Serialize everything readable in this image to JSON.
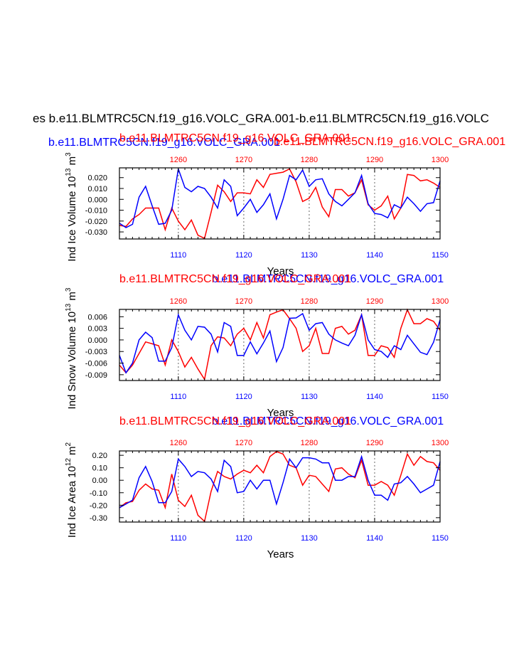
{
  "title": "es b.e11.BLMTRC5CN.f19_g16.VOLC_GRA.001-b.e11.BLMTRC5CN.f19_g16.VOLC",
  "colors": {
    "series_a": "#0000ff",
    "series_b": "#ff0000",
    "axis": "#000000",
    "gridline": "#808080"
  },
  "chart_data": [
    {
      "type": "line",
      "ylabel": "Ind Ice Volume 10",
      "ylabel_exp": "13",
      "ylabel_unit": " m",
      "ylabel_unit_exp": "3",
      "xlabel": "Years",
      "x_bottom": {
        "ticks": [
          1110,
          1120,
          1130,
          1140,
          1150
        ],
        "range": [
          1101,
          1150
        ]
      },
      "x_top": {
        "ticks": [
          1260,
          1270,
          1280,
          1290,
          1300
        ],
        "range": [
          1251,
          1300
        ]
      },
      "ylim": [
        -0.0365,
        0.029
      ],
      "yticks": [
        "0.020",
        "0.010",
        "0.000",
        "-0.010",
        "-0.020",
        "-0.030"
      ],
      "ytick_values": [
        0.02,
        0.01,
        0.0,
        -0.01,
        -0.02,
        -0.03
      ],
      "series": [
        {
          "name": "b.e11.BLMTRC5CN.f19_g16.VOLC_GRA.001",
          "axis": "bottom",
          "values": [
            -0.022,
            -0.026,
            -0.023,
            0.002,
            0.012,
            -0.006,
            -0.023,
            -0.022,
            -0.01,
            0.028,
            0.011,
            0.007,
            0.012,
            0.01,
            0.002,
            -0.008,
            0.018,
            0.012,
            -0.015,
            -0.008,
            0.0,
            -0.012,
            -0.005,
            0.005,
            -0.018,
            0.0,
            0.022,
            0.018,
            0.027,
            0.012,
            0.018,
            0.019,
            0.005,
            -0.002,
            -0.006,
            0.0,
            0.006,
            0.022,
            -0.004,
            -0.013,
            -0.014,
            -0.017,
            -0.005,
            -0.008,
            0.002,
            -0.004,
            -0.011,
            -0.004,
            -0.003,
            0.017
          ]
        },
        {
          "name": "b.e11.BLMTRC5CN.f19_g16.VOLC_GRA.001",
          "axis": "top",
          "values": [
            -0.024,
            -0.025,
            -0.018,
            -0.014,
            -0.008,
            -0.008,
            -0.008,
            -0.028,
            -0.008,
            -0.02,
            -0.028,
            -0.019,
            -0.033,
            -0.036,
            -0.012,
            0.013,
            0.007,
            -0.002,
            0.006,
            0.006,
            0.005,
            0.018,
            0.011,
            0.023,
            0.024,
            0.025,
            0.028,
            0.016,
            -0.002,
            0.001,
            0.011,
            -0.007,
            -0.016,
            0.009,
            0.009,
            0.003,
            0.006,
            0.018,
            -0.005,
            -0.01,
            -0.006,
            0.003,
            -0.018,
            -0.008,
            0.023,
            0.022,
            0.017,
            0.018,
            0.015,
            0.011
          ]
        }
      ]
    },
    {
      "type": "line",
      "ylabel": "Ind Snow Volume 10",
      "ylabel_exp": "13",
      "ylabel_unit": " m",
      "ylabel_unit_exp": "3",
      "xlabel": "Years",
      "x_bottom": {
        "ticks": [
          1110,
          1120,
          1130,
          1140,
          1150
        ],
        "range": [
          1101,
          1150
        ]
      },
      "x_top": {
        "ticks": [
          1260,
          1270,
          1280,
          1290,
          1300
        ],
        "range": [
          1251,
          1300
        ]
      },
      "ylim": [
        -0.0105,
        0.0079
      ],
      "yticks": [
        "0.006",
        "0.003",
        "0.000",
        "-0.003",
        "-0.006",
        "-0.009"
      ],
      "ytick_values": [
        0.006,
        0.003,
        0.0,
        -0.003,
        -0.006,
        -0.009
      ],
      "series": [
        {
          "name": "b.e11.BLMTRC5CN.f19_g16.VOLC_GRA.001",
          "axis": "bottom",
          "values": [
            -0.004,
            -0.0085,
            -0.006,
            0.0,
            0.002,
            0.0006,
            -0.0055,
            -0.0055,
            -0.002,
            0.0065,
            0.0025,
            0.0,
            0.0035,
            0.0033,
            0.0015,
            -0.0031,
            0.0045,
            0.0035,
            -0.004,
            -0.004,
            -0.0005,
            -0.0036,
            -0.0008,
            0.0023,
            -0.0056,
            -0.002,
            0.0056,
            0.0057,
            0.0068,
            0.0025,
            0.0042,
            0.0045,
            0.0015,
            0.0,
            -0.0008,
            -0.0015,
            0.0012,
            0.0065,
            0.0,
            -0.0025,
            -0.003,
            -0.0045,
            -0.0015,
            -0.0025,
            0.0012,
            -0.001,
            -0.0032,
            -0.0038,
            -0.0006,
            0.0052
          ]
        },
        {
          "name": "b.e11.BLMTRC5CN.f19_g16.VOLC_GRA.001",
          "axis": "top",
          "values": [
            -0.0065,
            -0.0085,
            -0.0065,
            -0.0035,
            -0.0005,
            -0.001,
            -0.0015,
            -0.0065,
            0.0,
            -0.003,
            -0.007,
            -0.0045,
            -0.0075,
            -0.0102,
            -0.0015,
            0.0008,
            0.0005,
            -0.0015,
            0.0015,
            0.003,
            0.0,
            0.0045,
            0.0005,
            0.0065,
            0.0072,
            0.0078,
            0.0055,
            0.003,
            -0.003,
            -0.0015,
            0.003,
            -0.0035,
            -0.0035,
            0.003,
            0.0035,
            0.0015,
            0.0025,
            0.0065,
            -0.004,
            -0.004,
            -0.0015,
            -0.002,
            -0.0045,
            0.003,
            0.0078,
            0.0042,
            0.0042,
            0.0055,
            0.0048,
            0.0025
          ]
        }
      ]
    },
    {
      "type": "line",
      "ylabel": "Ind Ice Area 10",
      "ylabel_exp": "12",
      "ylabel_unit": " m",
      "ylabel_unit_exp": "2",
      "xlabel": "Years",
      "x_bottom": {
        "ticks": [
          1110,
          1120,
          1130,
          1140,
          1150
        ],
        "range": [
          1101,
          1150
        ]
      },
      "x_top": {
        "ticks": [
          1260,
          1270,
          1280,
          1290,
          1300
        ],
        "range": [
          1251,
          1300
        ]
      },
      "ylim": [
        -0.335,
        0.235
      ],
      "yticks": [
        "0.20",
        "0.10",
        "0.00",
        "-0.10",
        "-0.20",
        "-0.30"
      ],
      "ytick_values": [
        0.2,
        0.1,
        0.0,
        -0.1,
        -0.2,
        -0.3
      ],
      "series": [
        {
          "name": "b.e11.BLMTRC5CN.f19_g16.VOLC_GRA.001",
          "axis": "bottom",
          "values": [
            -0.22,
            -0.19,
            -0.16,
            0.02,
            0.11,
            -0.01,
            -0.18,
            -0.18,
            -0.09,
            0.17,
            0.11,
            0.03,
            0.07,
            0.06,
            0.01,
            -0.09,
            0.16,
            0.11,
            -0.1,
            -0.09,
            0.0,
            -0.07,
            0.0,
            0.0,
            -0.19,
            -0.02,
            0.17,
            0.1,
            0.18,
            0.18,
            0.17,
            0.14,
            0.14,
            0.0,
            0.0,
            0.03,
            0.03,
            0.19,
            0.0,
            -0.12,
            -0.12,
            -0.16,
            -0.03,
            -0.02,
            0.03,
            -0.03,
            -0.1,
            -0.07,
            -0.04,
            0.15
          ]
        },
        {
          "name": "b.e11.BLMTRC5CN.f19_g16.VOLC_GRA.001",
          "axis": "top",
          "values": [
            -0.22,
            -0.18,
            -0.17,
            -0.08,
            -0.03,
            -0.07,
            -0.08,
            -0.22,
            0.05,
            -0.16,
            -0.21,
            -0.12,
            -0.28,
            -0.33,
            -0.09,
            0.07,
            0.03,
            0.01,
            0.05,
            0.08,
            0.06,
            0.12,
            0.06,
            0.19,
            0.23,
            0.21,
            0.12,
            0.1,
            -0.04,
            0.04,
            0.03,
            -0.03,
            -0.09,
            0.09,
            0.1,
            0.05,
            0.02,
            0.16,
            -0.04,
            -0.04,
            -0.01,
            -0.04,
            -0.12,
            0.04,
            0.21,
            0.12,
            0.19,
            0.15,
            0.14,
            0.08
          ]
        }
      ]
    }
  ]
}
